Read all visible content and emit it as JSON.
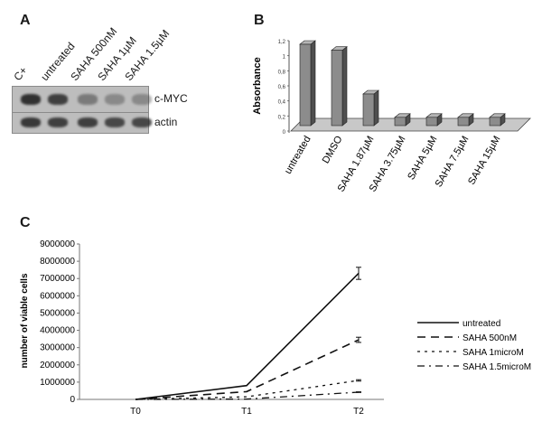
{
  "panel_a": {
    "letter": "A",
    "lanes": [
      "C+",
      "untreated",
      "SAHA 500nM",
      "SAHA 1µM",
      "SAHA 1.5µM"
    ],
    "rows": [
      {
        "label": "c-MYC",
        "band_intensity": [
          0.95,
          0.85,
          0.45,
          0.35,
          0.35
        ]
      },
      {
        "label": "actin",
        "band_intensity": [
          0.9,
          0.85,
          0.85,
          0.8,
          0.8
        ]
      }
    ]
  },
  "panel_b": {
    "letter": "B"
  },
  "panel_c": {
    "letter": "C"
  },
  "chart_data": [
    {
      "id": "panel_b",
      "type": "bar",
      "title": "",
      "ylabel": "Absorbance",
      "xlabel": "",
      "categories": [
        "untreated",
        "DMSO",
        "SAHA 1.87µM",
        "SAHA 3.75µM",
        "SAHA 5µM",
        "SAHA 7.5µM",
        "SAHA 15µM"
      ],
      "values": [
        1.08,
        1.0,
        0.42,
        0.11,
        0.11,
        0.11,
        0.11
      ],
      "ylim": [
        0,
        1.2
      ],
      "yticks": [
        "0",
        "0,2",
        "0,4",
        "0,6",
        "0,8",
        "1",
        "1,2"
      ],
      "ytick_values": [
        0,
        0.2,
        0.4,
        0.6,
        0.8,
        1.0,
        1.2
      ],
      "colors": {
        "bar_front": "#8c8c8c",
        "bar_side": "#4f4f4f",
        "bar_top": "#b5b5b5",
        "floor": "#c8c8c8"
      }
    },
    {
      "id": "panel_c",
      "type": "line",
      "title": "",
      "ylabel": "number of viable cells",
      "xlabel": "",
      "categories": [
        "T0",
        "T1",
        "T2"
      ],
      "ylim": [
        0,
        9000000
      ],
      "yticks": [
        0,
        1000000,
        2000000,
        3000000,
        4000000,
        5000000,
        6000000,
        7000000,
        8000000,
        9000000
      ],
      "series": [
        {
          "name": "untreated",
          "values": [
            0,
            800000,
            7300000
          ],
          "error": [
            0,
            0,
            350000
          ],
          "dash": "",
          "width": 1.6
        },
        {
          "name": "SAHA 500nM",
          "values": [
            0,
            450000,
            3450000
          ],
          "error": [
            0,
            0,
            150000
          ],
          "dash": "9,6",
          "width": 1.6
        },
        {
          "name": "SAHA 1microM",
          "values": [
            0,
            150000,
            1100000
          ],
          "error": [
            0,
            0,
            40000
          ],
          "dash": "3,5",
          "width": 1.3
        },
        {
          "name": "SAHA 1.5microM",
          "values": [
            0,
            20000,
            420000
          ],
          "error": [
            0,
            0,
            20000
          ],
          "dash": "8,5,2,5",
          "width": 1.3
        }
      ],
      "legend_position": "right"
    }
  ]
}
